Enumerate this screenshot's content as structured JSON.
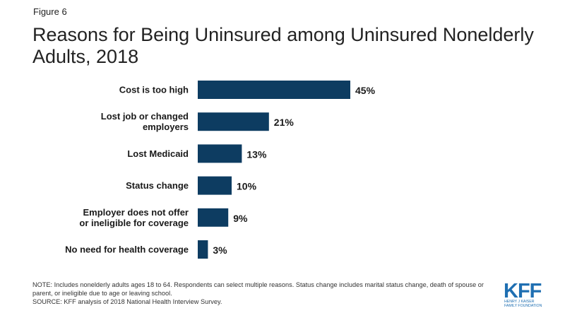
{
  "figure_label": "Figure 6",
  "title": "Reasons for Being Uninsured among Uninsured Nonelderly Adults, 2018",
  "chart_data": {
    "type": "bar",
    "orientation": "horizontal",
    "title": "Reasons for Being Uninsured among Uninsured Nonelderly Adults, 2018",
    "categories": [
      [
        "Cost is too high"
      ],
      [
        "Lost job or changed",
        "employers"
      ],
      [
        "Lost Medicaid"
      ],
      [
        "Status change"
      ],
      [
        "Employer does not offer",
        "or ineligible for coverage"
      ],
      [
        "No need for health coverage"
      ]
    ],
    "values": [
      45,
      21,
      13,
      10,
      9,
      3
    ],
    "value_labels": [
      "45%",
      "21%",
      "13%",
      "10%",
      "9%",
      "3%"
    ],
    "unit": "%",
    "xlim": [
      0,
      100
    ],
    "bar_color": "#0d3c61",
    "grid": false
  },
  "note": "NOTE: Includes nonelderly adults ages 18 to 64. Respondents can select multiple reasons. Status change includes marital status change, death of spouse or parent, or ineligible  due to age or leaving  school.",
  "source": "SOURCE: KFF analysis of 2018 National Health Interview Survey.",
  "logo": {
    "mark": "KFF",
    "line1": "HENRY J KAISER",
    "line2": "FAMILY FOUNDATION",
    "color": "#1f6fb2"
  }
}
